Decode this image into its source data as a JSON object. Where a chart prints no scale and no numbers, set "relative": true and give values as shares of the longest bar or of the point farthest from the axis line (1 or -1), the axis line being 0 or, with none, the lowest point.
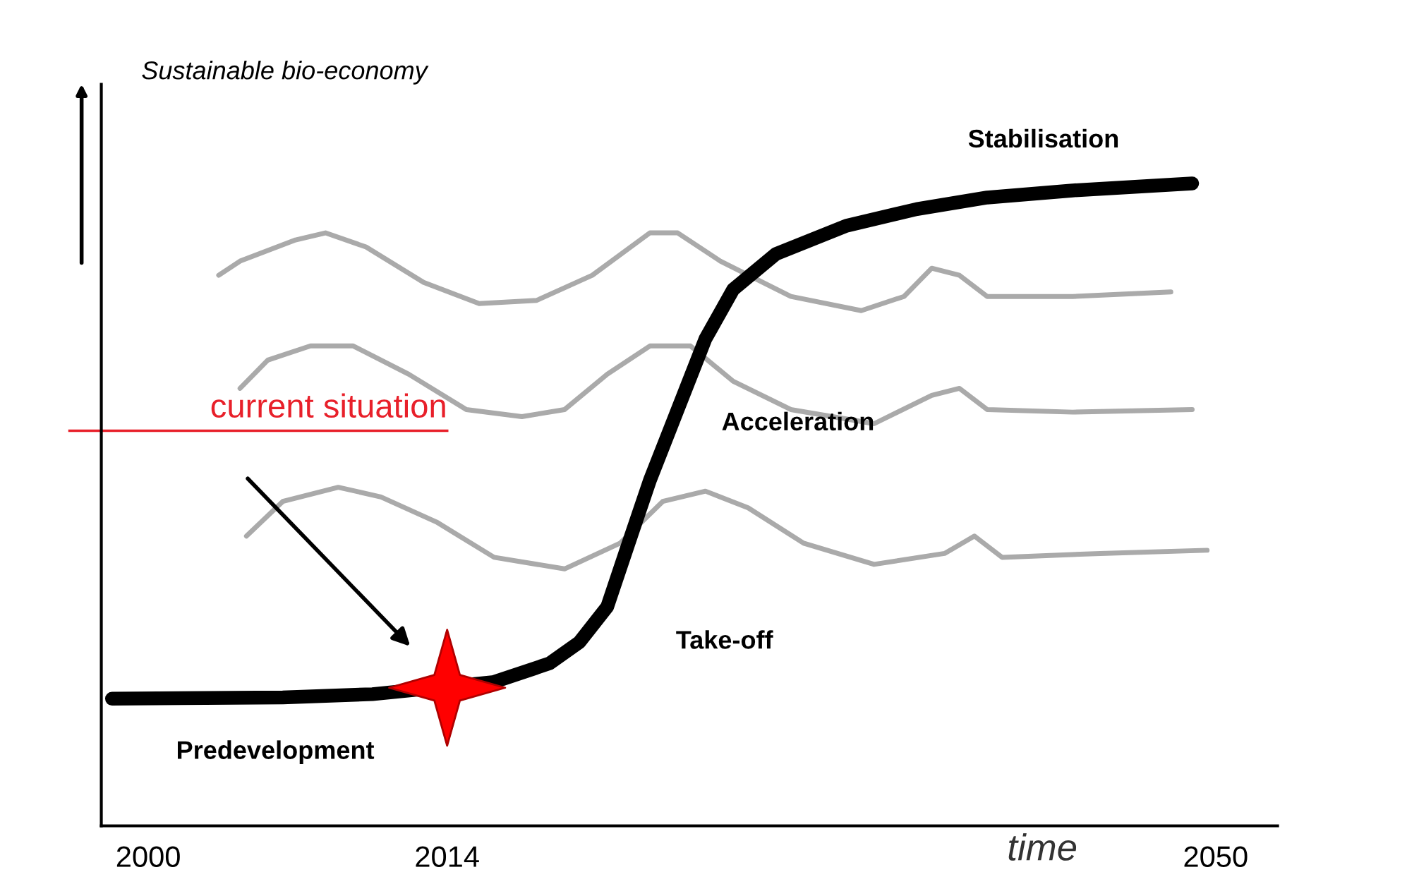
{
  "chart_data": {
    "type": "line",
    "relative": true,
    "ylabel": "Sustainable bio-economy",
    "xlabel": "time",
    "xlim": [
      1997.8,
      2052.9
    ],
    "xticks": [
      2000,
      2014,
      2050
    ],
    "grid": false,
    "legend": false,
    "line_style": "solid",
    "series": [
      {
        "color": "#aaaaaa",
        "x": [
          2003.3,
          2004.3,
          2006.9,
          2008.3,
          2010.2,
          2012.9,
          2015.5,
          2018.2,
          2020.8,
          2023.5,
          2024.8,
          2026.8,
          2030.1,
          2033.4,
          2035.4,
          2036.7,
          2038.0,
          2039.3,
          2043.3,
          2047.9
        ],
        "values": [
          0.857,
          0.879,
          0.912,
          0.923,
          0.901,
          0.846,
          0.813,
          0.818,
          0.857,
          0.923,
          0.923,
          0.879,
          0.824,
          0.802,
          0.824,
          0.868,
          0.857,
          0.824,
          0.824,
          0.831
        ]
      },
      {
        "color": "#aaaaaa",
        "x": [
          2004.3,
          2005.6,
          2007.6,
          2009.6,
          2012.2,
          2014.9,
          2017.5,
          2019.5,
          2021.5,
          2023.5,
          2025.4,
          2027.4,
          2030.1,
          2034.0,
          2036.7,
          2038.0,
          2039.3,
          2043.3,
          2048.9
        ],
        "values": [
          0.681,
          0.725,
          0.747,
          0.747,
          0.703,
          0.648,
          0.637,
          0.648,
          0.703,
          0.747,
          0.747,
          0.692,
          0.648,
          0.626,
          0.67,
          0.681,
          0.648,
          0.644,
          0.648
        ]
      },
      {
        "color": "#aaaaaa",
        "x": [
          2004.6,
          2006.3,
          2008.9,
          2010.9,
          2013.5,
          2016.2,
          2019.5,
          2022.1,
          2024.1,
          2026.1,
          2028.1,
          2030.7,
          2034.0,
          2037.3,
          2038.7,
          2040.0,
          2044.6,
          2049.6
        ],
        "values": [
          0.451,
          0.505,
          0.527,
          0.512,
          0.473,
          0.418,
          0.4,
          0.44,
          0.505,
          0.521,
          0.495,
          0.44,
          0.407,
          0.424,
          0.451,
          0.418,
          0.424,
          0.429
        ]
      },
      {
        "color": "#000000",
        "x": [
          1998.3,
          2006.3,
          2010.5,
          2016.2,
          2018.8,
          2020.2,
          2021.5,
          2022.5,
          2023.5,
          2024.8,
          2026.1,
          2027.4,
          2029.4,
          2032.7,
          2036.0,
          2039.3,
          2043.3,
          2048.9
        ],
        "values": [
          0.198,
          0.2,
          0.205,
          0.224,
          0.253,
          0.286,
          0.341,
          0.44,
          0.538,
          0.648,
          0.758,
          0.835,
          0.89,
          0.934,
          0.96,
          0.978,
          0.989,
          1.0
        ]
      },
      {
        "type": "scatter",
        "marker": "star",
        "color": "#ff0000",
        "x": [
          2014
        ],
        "values": [
          0.215
        ]
      }
    ],
    "ref_lines": [
      {
        "axis": "y",
        "value": 0.615,
        "label": "current situation",
        "color": "#e8202a"
      }
    ],
    "annotations": [
      {
        "text": "Stabilisation",
        "x": 2043.9,
        "y": 0.99
      },
      {
        "text": "Acceleration",
        "x": 2024.1,
        "y": 0.626
      },
      {
        "text": "Take-off",
        "x": 2021.5,
        "y": 0.341
      },
      {
        "text": "Predevelopment",
        "x": 2003.6,
        "y": 0.2
      }
    ]
  }
}
